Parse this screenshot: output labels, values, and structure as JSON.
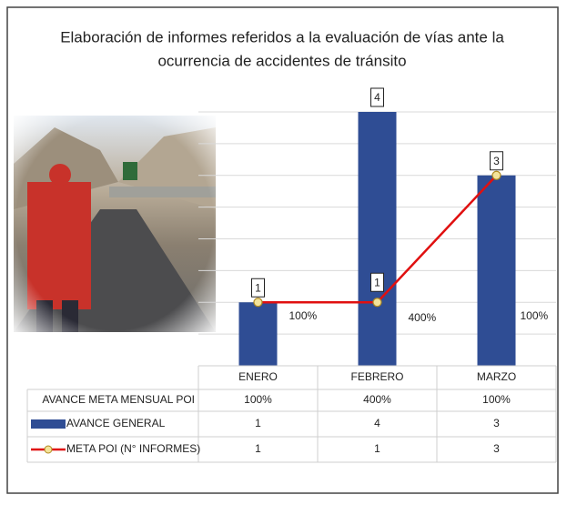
{
  "chart_data": {
    "type": "bar",
    "title_lines": [
      "Elaboración de informes referidos a la evaluación de vías ante la",
      "ocurrencia de accidentes de tránsito"
    ],
    "categories": [
      "ENERO",
      "FEBRERO",
      "MARZO"
    ],
    "ylim": [
      0,
      4
    ],
    "grid": true,
    "series": [
      {
        "name": "AVANCE GENERAL",
        "type": "bar",
        "color": "#2f4d94",
        "values": [
          1,
          4,
          3
        ]
      },
      {
        "name": "META POI (N° INFORMES)",
        "type": "line",
        "color": "#e01010",
        "marker_color": "#f3e39a",
        "values": [
          1,
          1,
          3
        ],
        "labeled": [
          false,
          true,
          false
        ]
      },
      {
        "name": "AVANCE META MENSUAL POI",
        "type": "label",
        "values": [
          100,
          400,
          100
        ],
        "value_labels": [
          "100%",
          "400%",
          "100%"
        ]
      }
    ]
  }
}
